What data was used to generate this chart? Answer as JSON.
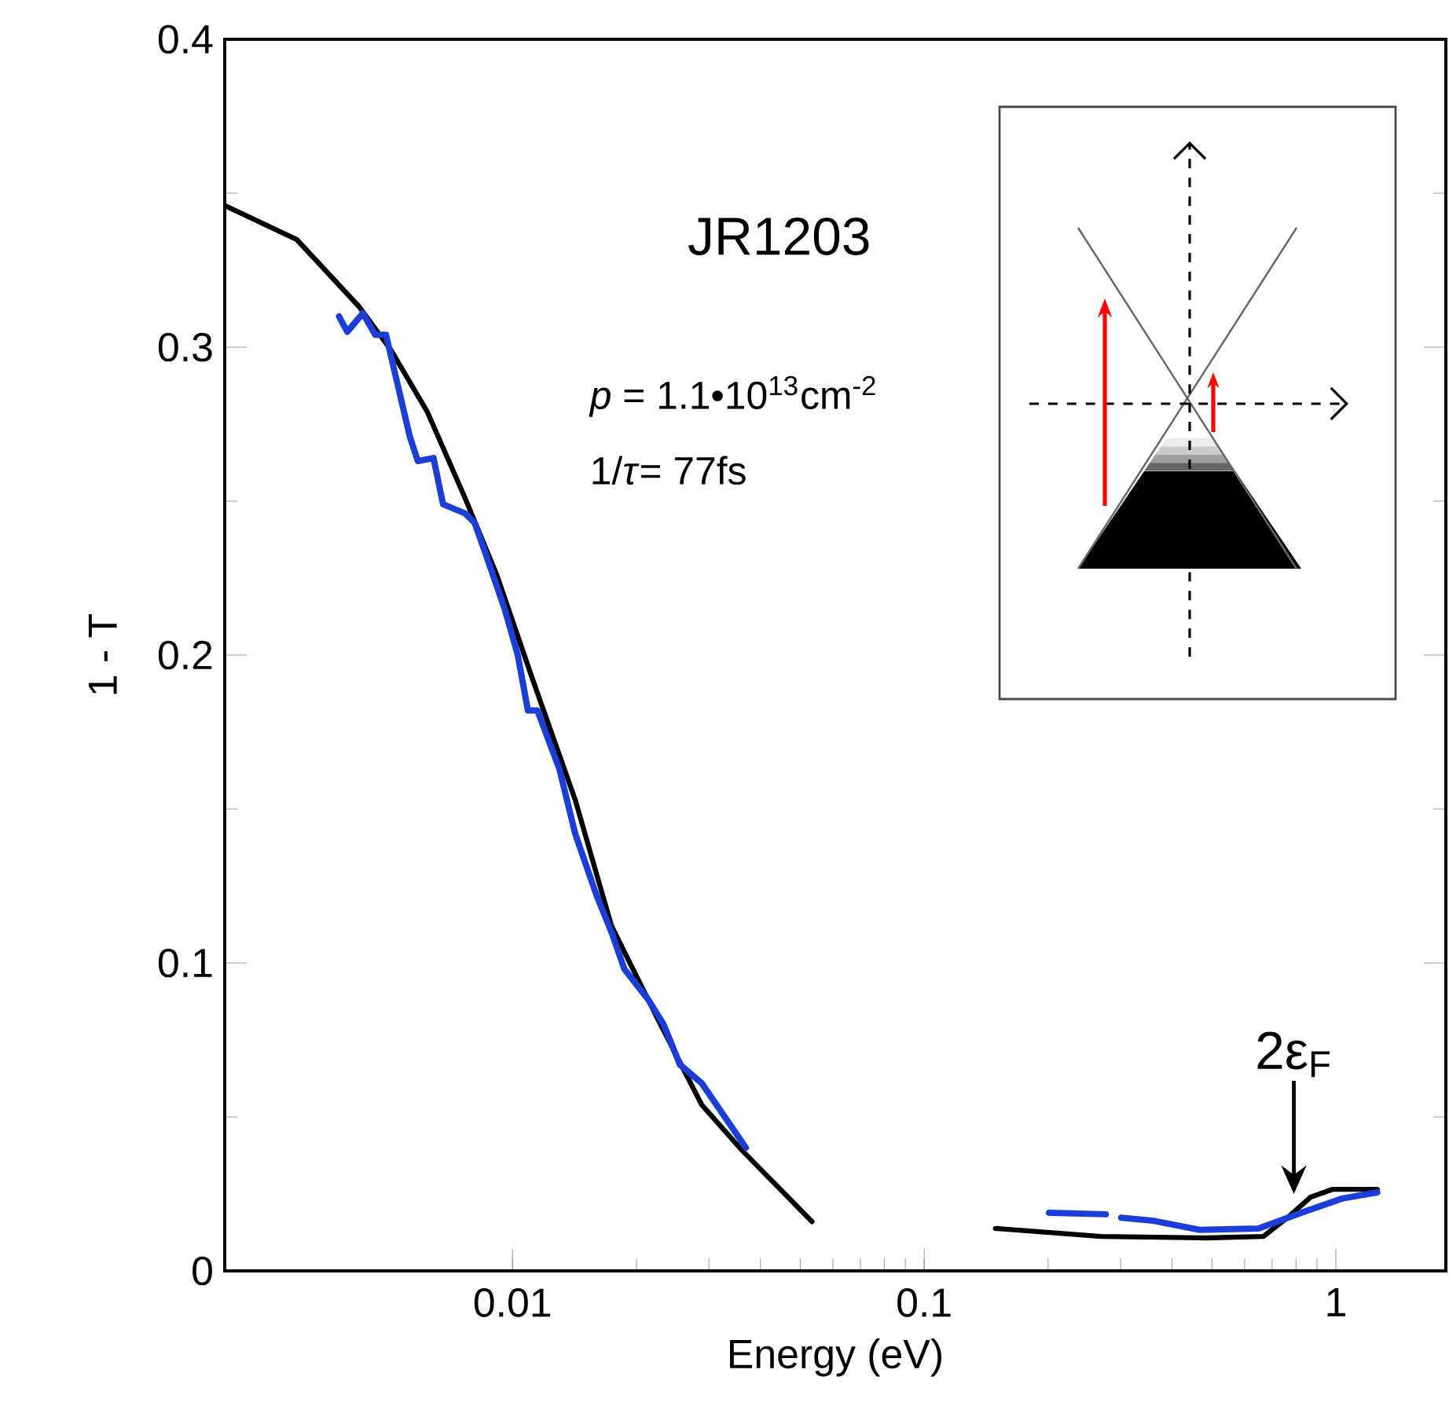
{
  "chart_data": {
    "type": "line",
    "xlabel": "Energy (eV)",
    "ylabel": "1 - T",
    "log": "x",
    "xlim": [
      0.002,
      1.85
    ],
    "ylim": [
      0,
      0.4
    ],
    "xticks": [
      0.01,
      0.1,
      1
    ],
    "yticks": [
      0,
      0.1,
      0.2,
      0.3,
      0.4
    ],
    "series": [
      {
        "color": "#000000",
        "x": [
          0.002,
          0.00299,
          0.00425,
          0.00507,
          0.00621,
          0.00767,
          0.00916,
          0.0112,
          0.0142,
          0.0174,
          0.0227,
          0.0288,
          0.0362,
          0.0534,
          0.1,
          0.149,
          0.269,
          0.485,
          0.667,
          0.774,
          0.869,
          0.982,
          1.26
        ],
        "values": [
          0.346,
          0.335,
          0.313,
          0.299,
          0.279,
          0.251,
          0.226,
          0.192,
          0.153,
          0.112,
          0.081,
          0.054,
          0.039,
          0.016,
          null,
          0.0138,
          0.0112,
          0.0107,
          0.0112,
          0.018,
          0.024,
          0.0265,
          0.0265
        ]
      },
      {
        "color": "#1c3ed8",
        "x": [
          0.00379,
          0.00397,
          0.00433,
          0.00464,
          0.00493,
          0.00563,
          0.00589,
          0.00643,
          0.00678,
          0.00767,
          0.00809,
          0.0086,
          0.00957,
          0.0103,
          0.0109,
          0.0115,
          0.013,
          0.0142,
          0.016,
          0.0174,
          0.0187,
          0.0214,
          0.0233,
          0.0255,
          0.0288,
          0.0324,
          0.0369,
          0.1,
          0.201,
          0.276,
          0.288,
          0.301,
          0.36,
          0.468,
          0.649,
          0.824,
          1.035,
          1.26
        ],
        "values": [
          0.31,
          0.305,
          0.311,
          0.304,
          0.304,
          0.271,
          0.263,
          0.264,
          0.249,
          0.246,
          0.243,
          0.233,
          0.215,
          0.2,
          0.182,
          0.182,
          0.163,
          0.142,
          0.122,
          0.11,
          0.098,
          0.088,
          0.08,
          0.067,
          0.061,
          0.051,
          0.04,
          null,
          0.0189,
          0.0184,
          null,
          0.0173,
          0.0163,
          0.0133,
          0.0138,
          0.0189,
          0.0235,
          0.0255
        ]
      }
    ],
    "annotations": [
      "JR1203",
      "*p* = 1.1•10$^{13}$cm$^{-2}$",
      "1/*τ*= 77fs",
      "2ε$_{F}$"
    ]
  }
}
